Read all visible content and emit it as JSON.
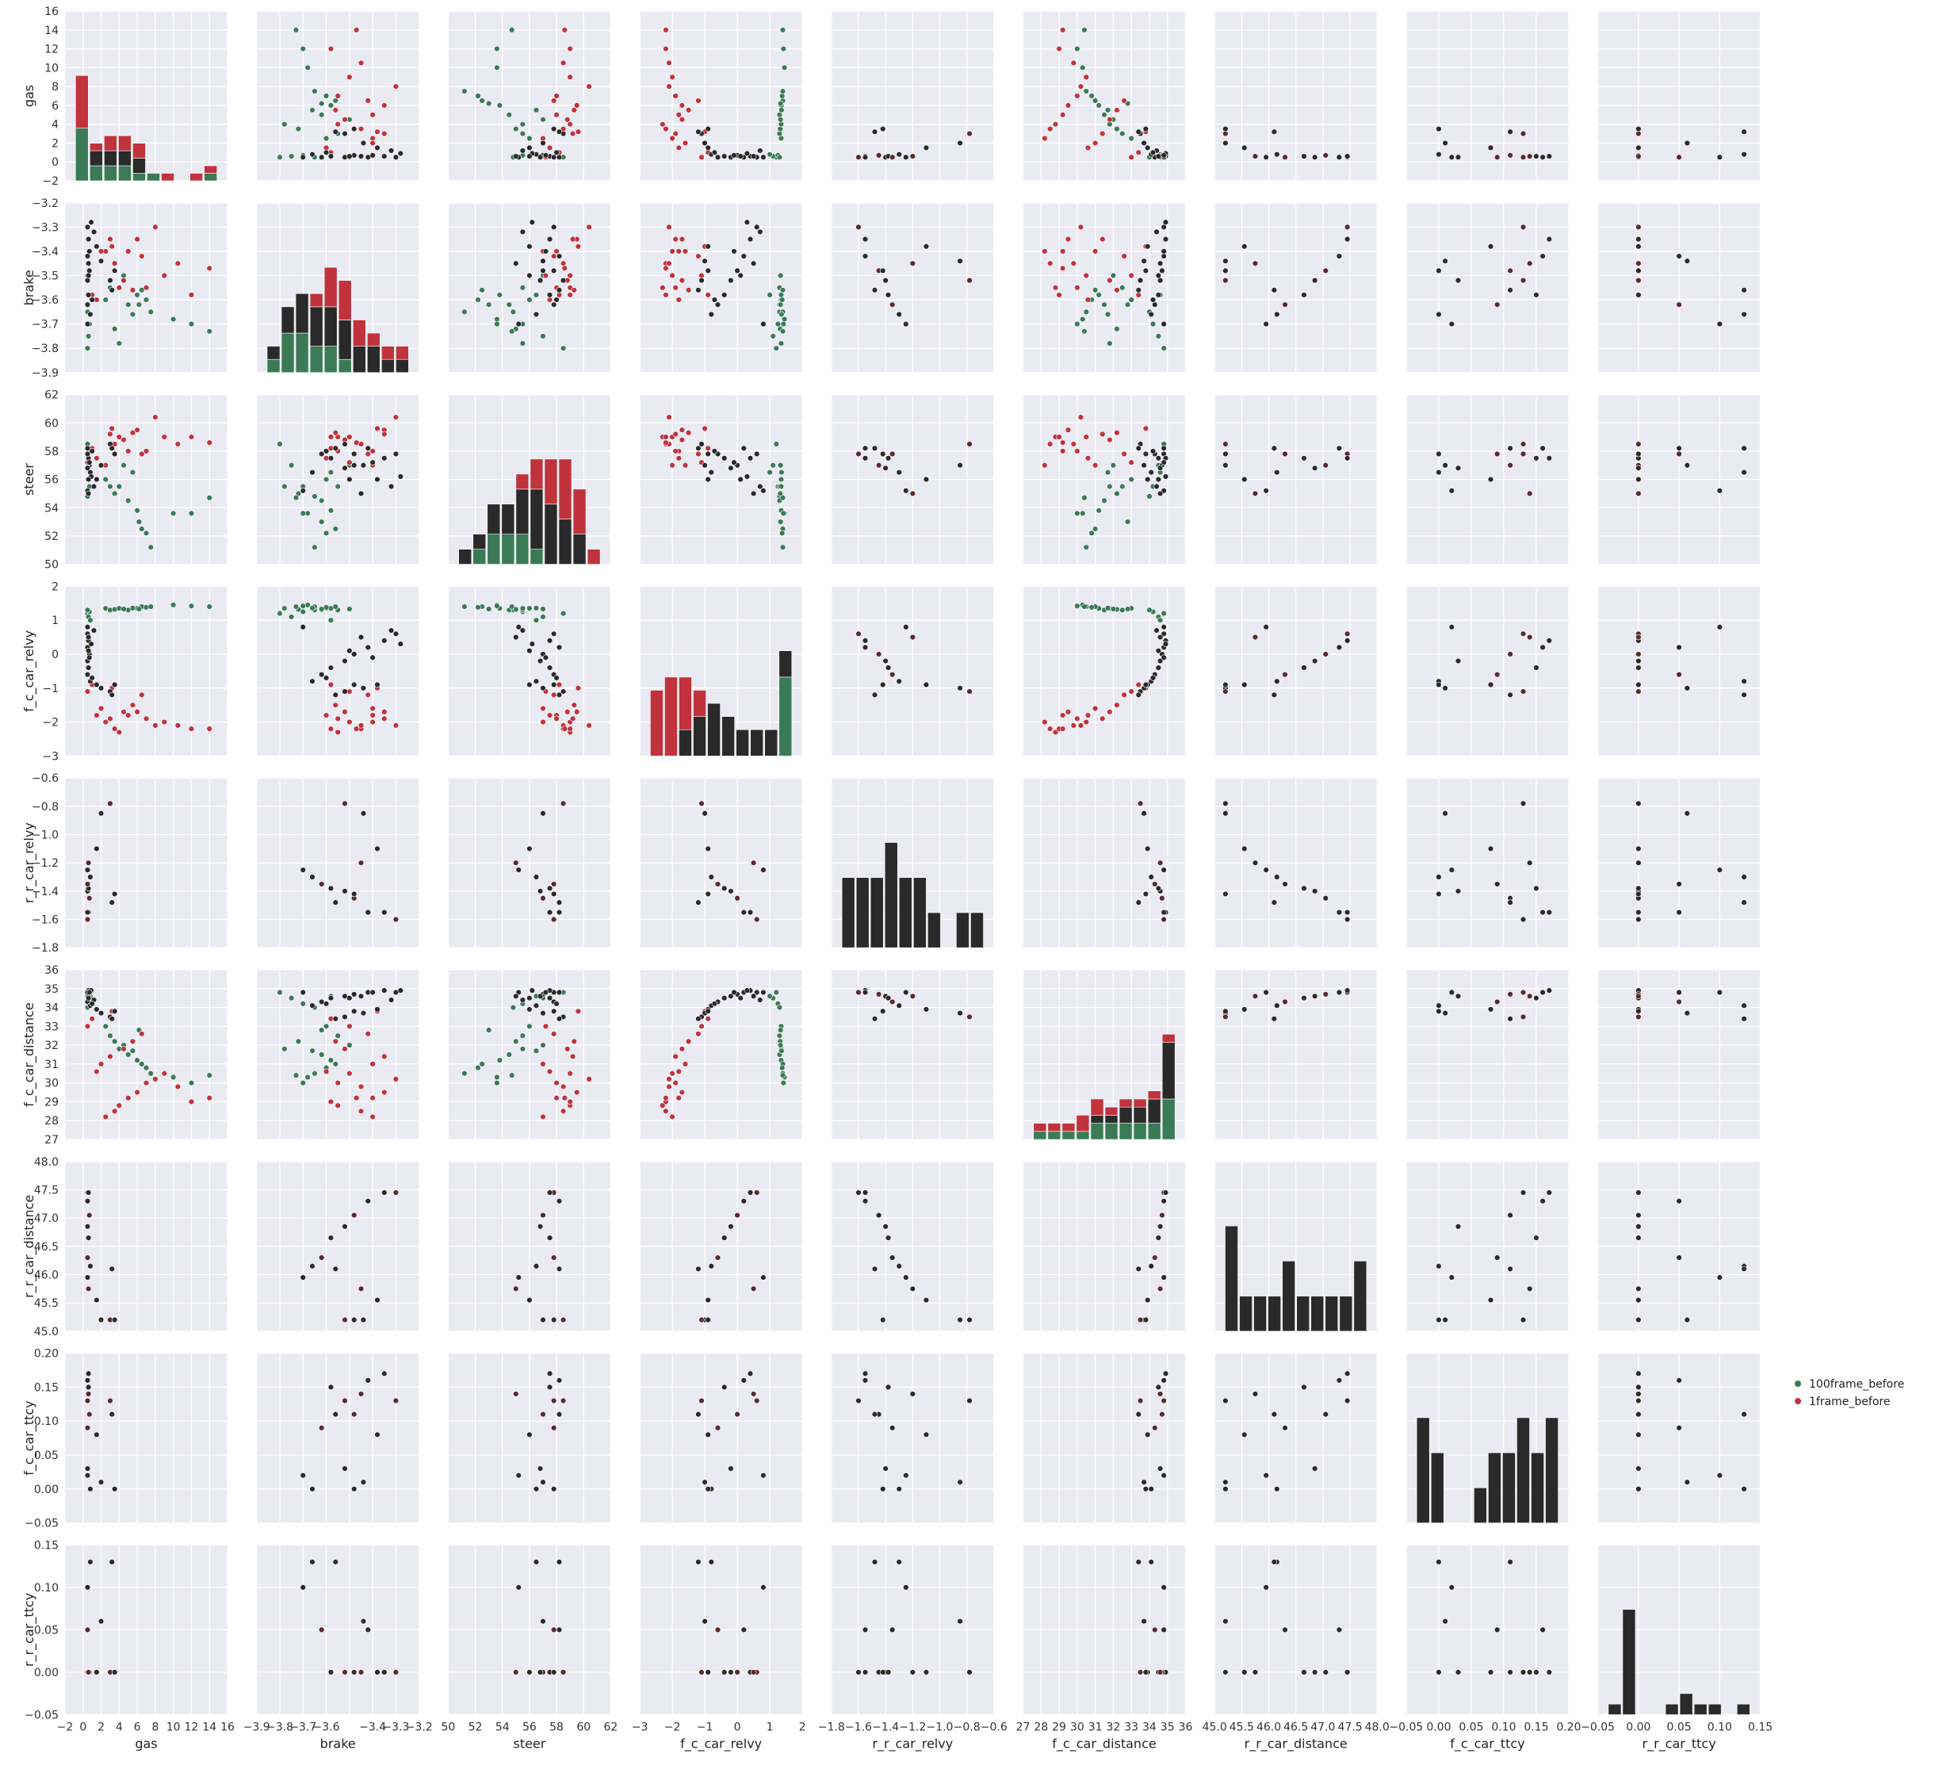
{
  "chart_data": {
    "type": "scatter",
    "kind": "pairplot",
    "variables": [
      "gas",
      "brake",
      "steer",
      "f_c_car_relvy",
      "r_r_car_relvy",
      "f_c_car_distance",
      "r_r_car_distance",
      "f_c_car_ttcy",
      "r_r_car_ttcy"
    ],
    "axes": {
      "gas": {
        "range": [
          -2,
          16
        ],
        "ticks": [
          -2,
          0,
          2,
          4,
          6,
          8,
          10,
          12,
          14,
          16
        ],
        "labels": [
          "−2",
          "0",
          "2",
          "4",
          "6",
          "8",
          "10",
          "12",
          "14",
          "16"
        ]
      },
      "brake": {
        "range": [
          -3.9,
          -3.2
        ],
        "ticks": [
          -3.9,
          -3.8,
          -3.7,
          -3.6,
          -3.5,
          -3.4,
          -3.3,
          -3.2
        ],
        "labels": [
          "−3.9",
          "−3.8",
          "−3.7",
          "−3.6",
          "−3.5",
          "−3.4",
          "−3.3",
          "−3.2"
        ],
        "xlabels": [
          "−3.9",
          "−3.8",
          "−3.7",
          "−3.6",
          "",
          "−3.4",
          "−3.3",
          "−3.2"
        ],
        "ylabels": [
          "−3.9",
          "−3.8",
          "−3.7",
          "−3.6",
          "−3.5",
          "−3.4",
          "−3.3",
          "−3.2"
        ]
      },
      "steer": {
        "range": [
          50,
          62
        ],
        "ticks": [
          50,
          52,
          54,
          56,
          58,
          60,
          62
        ],
        "labels": [
          "50",
          "52",
          "54",
          "56",
          "58",
          "60",
          "62"
        ]
      },
      "f_c_car_relvy": {
        "range": [
          -3,
          2
        ],
        "ticks": [
          -3,
          -2,
          -1,
          0,
          1,
          2
        ],
        "labels": [
          "−3",
          "−2",
          "−1",
          "0",
          "1",
          "2"
        ]
      },
      "r_r_car_relvy": {
        "range": [
          -1.8,
          -0.6
        ],
        "ticks": [
          -1.8,
          -1.6,
          -1.4,
          -1.2,
          -1.0,
          -0.8,
          -0.6
        ],
        "labels": [
          "−1.8",
          "−1.6",
          "−1.4",
          "−1.2",
          "−1.0",
          "−0.8",
          "−0.6"
        ]
      },
      "f_c_car_distance": {
        "range": [
          27,
          36
        ],
        "ticks": [
          27,
          28,
          29,
          30,
          31,
          32,
          33,
          34,
          35,
          36
        ],
        "labels": [
          "27",
          "28",
          "29",
          "30",
          "31",
          "32",
          "33",
          "34",
          "35",
          "36"
        ]
      },
      "r_r_car_distance": {
        "range": [
          45.0,
          48.0
        ],
        "ticks": [
          45.0,
          45.5,
          46.0,
          46.5,
          47.0,
          47.5,
          48.0
        ],
        "labels": [
          "45.0",
          "45.5",
          "46.0",
          "46.5",
          "47.0",
          "47.5",
          "48.0"
        ]
      },
      "f_c_car_ttcy": {
        "range": [
          -0.05,
          0.2
        ],
        "ticks": [
          -0.05,
          0.0,
          0.05,
          0.1,
          0.15,
          0.2
        ],
        "labels": [
          "−0.05",
          "0.00",
          "0.05",
          "0.10",
          "0.15",
          "0.20"
        ]
      },
      "r_r_car_ttcy": {
        "range": [
          -0.05,
          0.15
        ],
        "ticks": [
          -0.05,
          0.0,
          0.05,
          0.1,
          0.15
        ],
        "labels": [
          "−0.05",
          "0.00",
          "0.05",
          "0.10",
          "0.15"
        ]
      }
    },
    "series": [
      {
        "name": "100frame_before",
        "color": "#3a7a55"
      },
      {
        "name": "1frame_before",
        "color": "#c0333c"
      }
    ],
    "dark_color": "#2a2a2a",
    "legend_position": "right",
    "grid": true,
    "background": "#eaeaf2",
    "points_green_gas_brake_steer_relvy_dist": [
      [
        0.5,
        -3.8,
        58.5,
        1.2,
        34.8
      ],
      [
        0.6,
        -3.75,
        57.0,
        1.1,
        34.5
      ],
      [
        0.7,
        -3.7,
        55.5,
        1.25,
        34.2
      ],
      [
        0.5,
        -3.65,
        54.8,
        1.3,
        34.0
      ],
      [
        0.8,
        -3.58,
        56.5,
        1.0,
        34.6
      ],
      [
        2.5,
        -3.6,
        56.0,
        1.35,
        33.0
      ],
      [
        3.0,
        -3.55,
        55.5,
        1.3,
        32.5
      ],
      [
        3.5,
        -3.72,
        55.0,
        1.32,
        32.2
      ],
      [
        4.0,
        -3.78,
        55.5,
        1.35,
        31.8
      ],
      [
        5.0,
        -3.62,
        54.5,
        1.3,
        31.5
      ],
      [
        6.0,
        -3.58,
        53.8,
        1.35,
        31.2
      ],
      [
        6.5,
        -3.56,
        52.5,
        1.4,
        31.0
      ],
      [
        7.0,
        -3.6,
        52.2,
        1.38,
        30.8
      ],
      [
        7.5,
        -3.65,
        51.2,
        1.4,
        30.5
      ],
      [
        10.0,
        -3.68,
        53.6,
        1.45,
        30.3
      ],
      [
        12.0,
        -3.7,
        53.6,
        1.42,
        30.0
      ],
      [
        14.0,
        -3.73,
        54.7,
        1.4,
        30.4
      ],
      [
        4.5,
        -3.5,
        57.0,
        1.33,
        32.0
      ],
      [
        5.5,
        -3.66,
        56.5,
        1.36,
        31.7
      ],
      [
        6.2,
        -3.62,
        53.0,
        1.33,
        32.8
      ]
    ],
    "points_red_gas_brake_steer_relvy_dist": [
      [
        2.5,
        -3.4,
        57.0,
        -2.0,
        28.2
      ],
      [
        3.5,
        -3.45,
        58.5,
        -2.2,
        28.5
      ],
      [
        4.0,
        -3.55,
        59.0,
        -2.3,
        28.8
      ],
      [
        5.0,
        -3.4,
        58.0,
        -1.8,
        29.2
      ],
      [
        6.0,
        -3.35,
        59.5,
        -1.7,
        29.5
      ],
      [
        7.0,
        -3.55,
        58.0,
        -1.9,
        30.0
      ],
      [
        8.0,
        -3.3,
        60.4,
        -2.1,
        30.2
      ],
      [
        9.0,
        -3.5,
        59.0,
        -2.0,
        30.5
      ],
      [
        10.5,
        -3.45,
        58.5,
        -2.1,
        29.8
      ],
      [
        12.0,
        -3.58,
        59.0,
        -2.2,
        29.0
      ],
      [
        14.0,
        -3.47,
        58.6,
        -2.2,
        29.2
      ],
      [
        1.5,
        -3.6,
        57.5,
        -1.8,
        30.6
      ],
      [
        2.0,
        -3.4,
        57.0,
        -1.6,
        31.0
      ],
      [
        3.0,
        -3.35,
        59.2,
        -1.9,
        31.4
      ],
      [
        4.5,
        -3.52,
        58.8,
        -1.7,
        31.8
      ],
      [
        5.5,
        -3.56,
        59.3,
        -1.5,
        32.2
      ],
      [
        6.5,
        -3.42,
        57.8,
        -1.2,
        32.6
      ],
      [
        0.5,
        -3.5,
        57.2,
        -1.1,
        33.0
      ],
      [
        1.0,
        -3.58,
        58.2,
        -0.9,
        33.4
      ],
      [
        3.2,
        -3.38,
        59.6,
        -1.0,
        33.8
      ]
    ],
    "points_dark_gas_brake_steer_relvy_dist": [
      [
        0.5,
        -3.3,
        57.8,
        0.6,
        34.8
      ],
      [
        0.6,
        -3.35,
        57.5,
        0.4,
        34.9
      ],
      [
        0.5,
        -3.42,
        58.2,
        0.2,
        34.8
      ],
      [
        0.7,
        -3.48,
        57.0,
        0.0,
        34.7
      ],
      [
        0.5,
        -3.52,
        56.8,
        -0.2,
        34.6
      ],
      [
        0.6,
        -3.58,
        57.5,
        -0.4,
        34.5
      ],
      [
        0.5,
        -3.62,
        57.8,
        -0.6,
        34.3
      ],
      [
        0.8,
        -3.66,
        56.5,
        -0.8,
        34.1
      ],
      [
        0.5,
        -3.7,
        55.2,
        0.8,
        34.8
      ],
      [
        0.6,
        -3.45,
        55.0,
        0.5,
        34.6
      ],
      [
        1.5,
        -3.38,
        56.0,
        -0.9,
        33.9
      ],
      [
        2.0,
        -3.44,
        57.0,
        -1.0,
        33.7
      ],
      [
        3.0,
        -3.52,
        58.5,
        -1.1,
        33.5
      ],
      [
        3.5,
        -3.48,
        57.8,
        -0.9,
        33.8
      ],
      [
        3.2,
        -3.56,
        58.2,
        -1.2,
        33.4
      ],
      [
        0.9,
        -3.28,
        56.2,
        0.3,
        34.9
      ],
      [
        1.2,
        -3.32,
        55.5,
        0.7,
        34.4
      ],
      [
        0.7,
        -3.4,
        57.2,
        -0.1,
        34.8
      ],
      [
        0.6,
        -3.5,
        56.0,
        0.1,
        34.5
      ],
      [
        1.0,
        -3.6,
        58.0,
        -0.7,
        34.2
      ]
    ],
    "points_rear_rrel_rdist_fttc_rttc": [
      [
        -1.6,
        47.45,
        0.13,
        0.0
      ],
      [
        -1.55,
        47.45,
        0.17,
        0.0
      ],
      [
        -1.55,
        47.3,
        0.16,
        0.05
      ],
      [
        -1.45,
        47.05,
        0.11,
        0.0
      ],
      [
        -1.4,
        46.85,
        0.03,
        0.0
      ],
      [
        -1.38,
        46.65,
        0.15,
        0.0
      ],
      [
        -1.35,
        46.3,
        0.09,
        0.05
      ],
      [
        -1.3,
        46.15,
        0.0,
        0.13
      ],
      [
        -1.25,
        45.95,
        0.02,
        0.1
      ],
      [
        -1.2,
        45.75,
        0.14,
        0.0
      ],
      [
        -1.1,
        45.55,
        0.08,
        0.0
      ],
      [
        -0.85,
        45.2,
        0.01,
        0.06
      ],
      [
        -0.78,
        45.2,
        0.13,
        0.0
      ],
      [
        -1.42,
        45.2,
        0.0,
        0.0
      ],
      [
        -1.48,
        46.1,
        0.11,
        0.13
      ]
    ],
    "diag_hist_counts": {
      "gas": {
        "green": [
          7,
          2,
          2,
          2,
          1,
          1,
          0,
          0,
          0,
          1
        ],
        "red": [
          7,
          1,
          2,
          2,
          2,
          0,
          1,
          0,
          1,
          1
        ],
        "dark": [
          0,
          2,
          2,
          2,
          2,
          0,
          0,
          0,
          0,
          0
        ]
      },
      "brake": {
        "green": [
          1,
          3,
          3,
          2,
          2,
          1,
          0,
          0,
          0,
          0
        ],
        "red": [
          0,
          0,
          0,
          1,
          3,
          3,
          2,
          1,
          1,
          1
        ],
        "dark": [
          1,
          2,
          3,
          3,
          3,
          3,
          2,
          2,
          1,
          1
        ]
      },
      "steer": {
        "green": [
          0,
          1,
          2,
          2,
          2,
          1,
          0,
          0,
          0,
          0
        ],
        "red": [
          0,
          0,
          0,
          0,
          1,
          2,
          3,
          4,
          3,
          1
        ],
        "dark": [
          1,
          1,
          2,
          2,
          3,
          4,
          4,
          3,
          2,
          0
        ]
      },
      "f_c_car_relvy": {
        "green": [
          0,
          0,
          0,
          0,
          0,
          0,
          0,
          0,
          0,
          6
        ],
        "red": [
          5,
          6,
          4,
          2,
          0,
          0,
          0,
          0,
          0,
          0
        ],
        "dark": [
          0,
          0,
          2,
          3,
          4,
          3,
          2,
          2,
          2,
          2
        ]
      },
      "r_r_car_relvy": {
        "dark": [
          2,
          2,
          2,
          3,
          2,
          2,
          1,
          0,
          1,
          1
        ]
      },
      "f_c_car_distance": {
        "green": [
          1,
          1,
          1,
          1,
          2,
          2,
          2,
          2,
          2,
          5
        ],
        "red": [
          1,
          1,
          1,
          2,
          2,
          1,
          1,
          1,
          1,
          1
        ],
        "dark": [
          0,
          0,
          0,
          0,
          1,
          1,
          2,
          2,
          3,
          7
        ]
      },
      "r_r_car_distance": {
        "dark": [
          3,
          1,
          1,
          1,
          2,
          1,
          1,
          1,
          1,
          2
        ]
      },
      "f_c_car_ttcy": {
        "dark": [
          3,
          2,
          0,
          0,
          1,
          2,
          2,
          3,
          2,
          3
        ]
      },
      "r_r_car_ttcy": {
        "dark": [
          1,
          10,
          0,
          0,
          1,
          2,
          1,
          1,
          0,
          1
        ]
      }
    }
  },
  "legend": {
    "items": [
      {
        "label": "100frame_before",
        "color": "#3a7a55"
      },
      {
        "label": "1frame_before",
        "color": "#c0333c"
      }
    ]
  }
}
